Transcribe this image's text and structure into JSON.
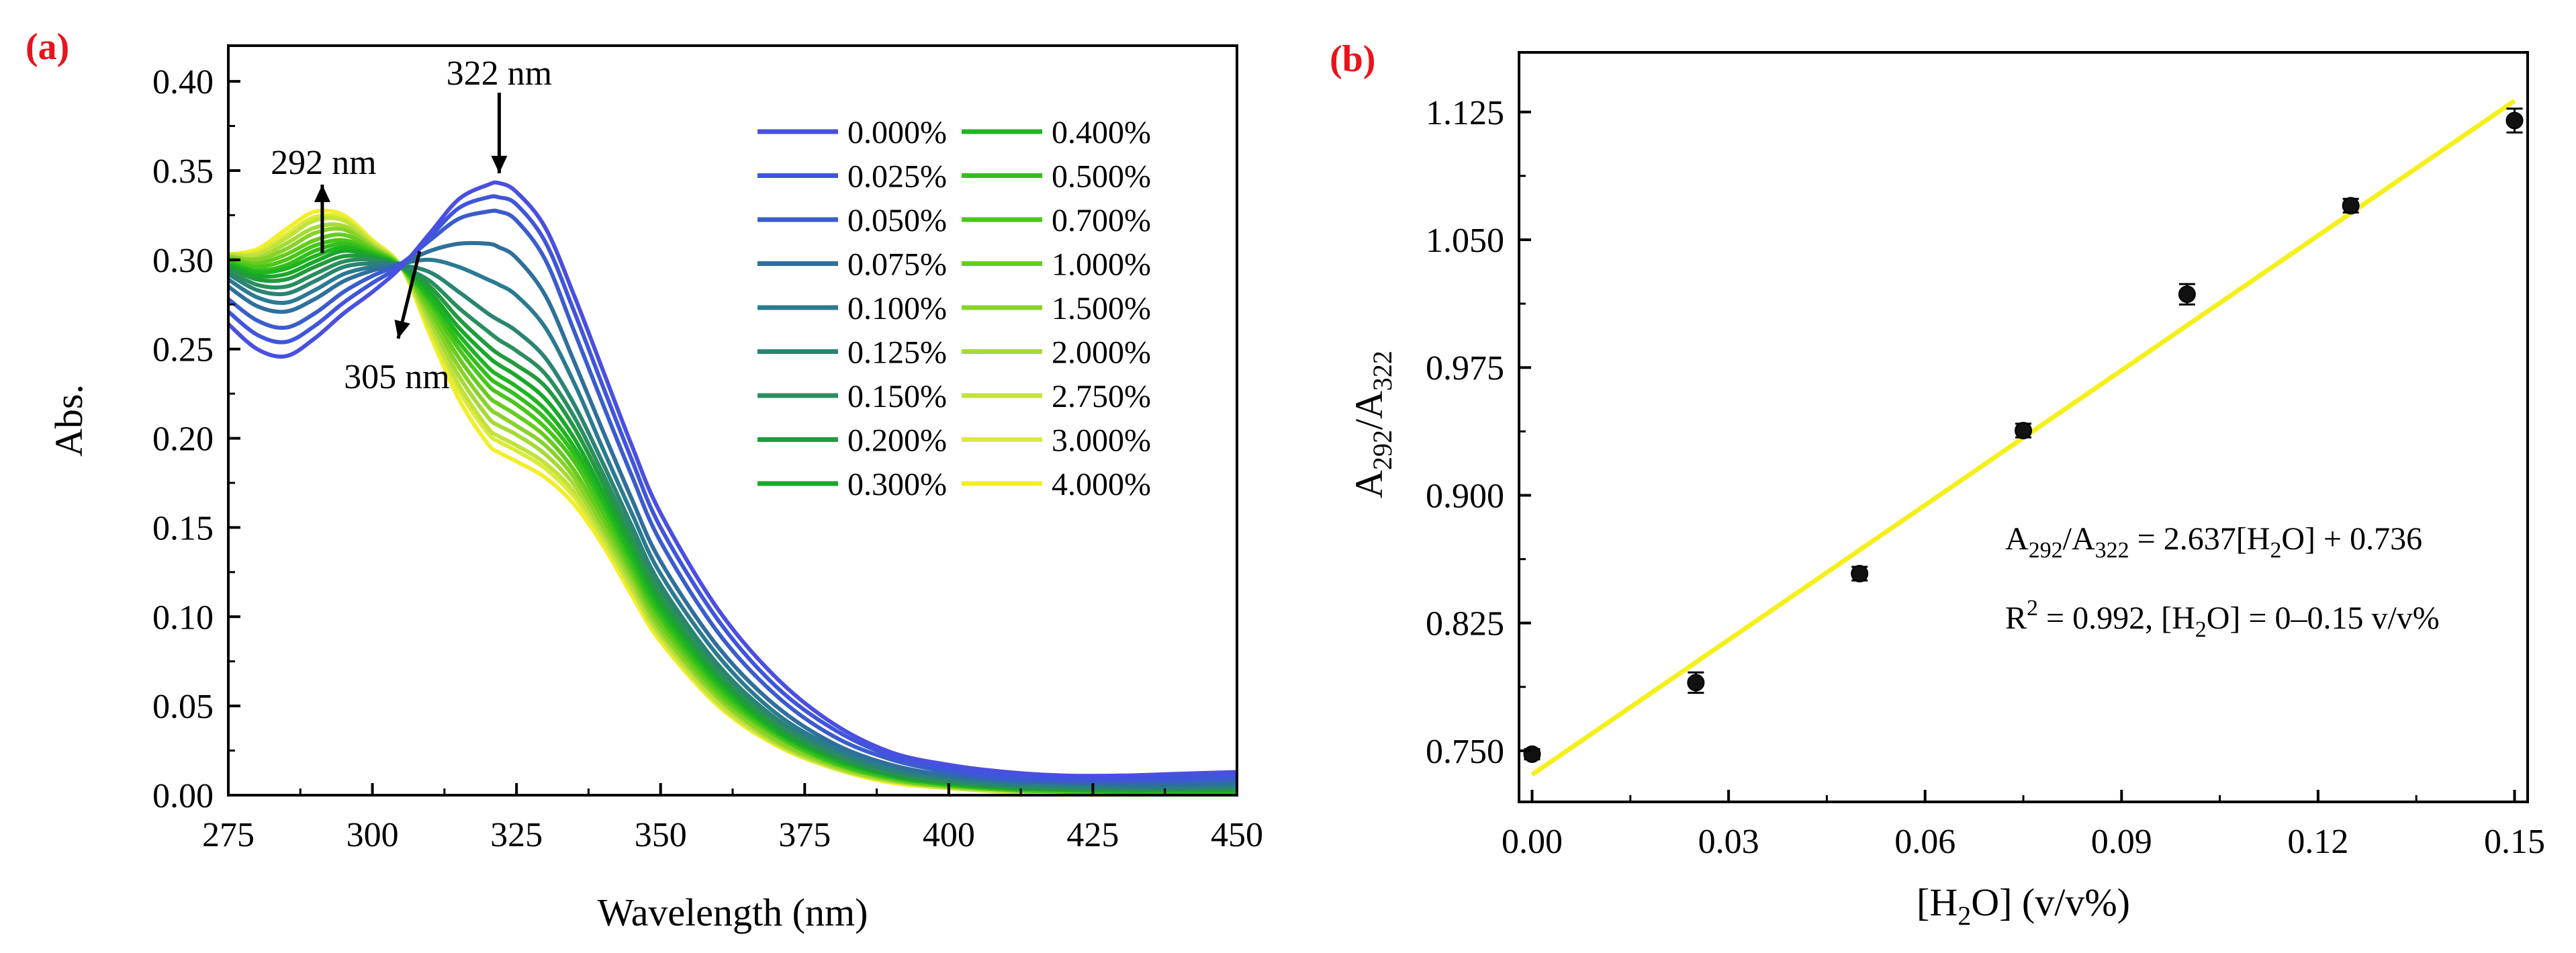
{
  "chart_data": [
    {
      "type": "line",
      "panel_label": "(a)",
      "xlabel": "Wavelength (nm)",
      "ylabel": "Abs.",
      "xlim": [
        275,
        450
      ],
      "ylim": [
        0.0,
        0.42
      ],
      "xticks": [
        "275",
        "300",
        "325",
        "350",
        "375",
        "400",
        "425",
        "450"
      ],
      "yticks": [
        "0.00",
        "0.05",
        "0.10",
        "0.15",
        "0.20",
        "0.25",
        "0.30",
        "0.35",
        "0.40"
      ],
      "x_tick_values": [
        275,
        300,
        325,
        350,
        375,
        400,
        425,
        450
      ],
      "y_tick_values": [
        0.0,
        0.05,
        0.1,
        0.15,
        0.2,
        0.25,
        0.3,
        0.35,
        0.4
      ],
      "grid": false,
      "legend_placement": "top-right",
      "annotations": [
        {
          "text": "292 nm",
          "x": 292,
          "y": 0.3,
          "direction": "up"
        },
        {
          "text": "322 nm",
          "x": 322,
          "y": 0.344,
          "direction": "down"
        },
        {
          "text": "305 nm",
          "x": 304,
          "y": 0.295,
          "direction": "down-left"
        }
      ],
      "x_points": [
        275,
        280,
        285,
        290,
        295,
        300,
        305,
        310,
        315,
        320,
        322,
        325,
        330,
        335,
        340,
        345,
        350,
        360,
        370,
        380,
        390,
        400,
        410,
        420,
        430,
        440,
        450
      ],
      "series": [
        {
          "name": "0.000%",
          "color": "#4a4fe0",
          "values": [
            0.264,
            0.25,
            0.246,
            0.256,
            0.27,
            0.282,
            0.296,
            0.315,
            0.334,
            0.342,
            0.343,
            0.338,
            0.318,
            0.28,
            0.238,
            0.196,
            0.158,
            0.104,
            0.066,
            0.04,
            0.024,
            0.017,
            0.013,
            0.011,
            0.011,
            0.012,
            0.013
          ]
        },
        {
          "name": "0.025%",
          "color": "#4055dc",
          "values": [
            0.271,
            0.258,
            0.254,
            0.263,
            0.276,
            0.287,
            0.297,
            0.313,
            0.329,
            0.335,
            0.335,
            0.331,
            0.31,
            0.271,
            0.229,
            0.188,
            0.15,
            0.098,
            0.061,
            0.037,
            0.022,
            0.015,
            0.011,
            0.009,
            0.009,
            0.01,
            0.011
          ]
        },
        {
          "name": "0.050%",
          "color": "#3a5ccc",
          "values": [
            0.278,
            0.266,
            0.262,
            0.27,
            0.282,
            0.291,
            0.298,
            0.311,
            0.323,
            0.327,
            0.327,
            0.322,
            0.3,
            0.26,
            0.219,
            0.179,
            0.142,
            0.091,
            0.056,
            0.033,
            0.02,
            0.013,
            0.009,
            0.008,
            0.008,
            0.008,
            0.009
          ]
        },
        {
          "name": "0.075%",
          "color": "#2f6f9c",
          "values": [
            0.285,
            0.274,
            0.271,
            0.278,
            0.288,
            0.294,
            0.298,
            0.305,
            0.309,
            0.309,
            0.307,
            0.301,
            0.28,
            0.243,
            0.204,
            0.166,
            0.131,
            0.083,
            0.05,
            0.029,
            0.017,
            0.011,
            0.008,
            0.007,
            0.006,
            0.006,
            0.007
          ]
        },
        {
          "name": "0.100%",
          "color": "#2a7a92",
          "values": [
            0.289,
            0.279,
            0.276,
            0.283,
            0.292,
            0.296,
            0.298,
            0.3,
            0.296,
            0.289,
            0.286,
            0.28,
            0.262,
            0.231,
            0.194,
            0.158,
            0.124,
            0.078,
            0.046,
            0.027,
            0.016,
            0.01,
            0.007,
            0.006,
            0.005,
            0.005,
            0.006
          ]
        },
        {
          "name": "0.125%",
          "color": "#2a8472",
          "values": [
            0.292,
            0.283,
            0.281,
            0.288,
            0.296,
            0.298,
            0.297,
            0.293,
            0.282,
            0.27,
            0.266,
            0.26,
            0.245,
            0.219,
            0.186,
            0.151,
            0.118,
            0.073,
            0.043,
            0.025,
            0.014,
            0.009,
            0.006,
            0.005,
            0.004,
            0.004,
            0.005
          ]
        },
        {
          "name": "0.150%",
          "color": "#2a8e5e",
          "values": [
            0.294,
            0.286,
            0.285,
            0.292,
            0.299,
            0.3,
            0.296,
            0.288,
            0.273,
            0.26,
            0.255,
            0.249,
            0.236,
            0.212,
            0.18,
            0.146,
            0.114,
            0.07,
            0.041,
            0.023,
            0.013,
            0.008,
            0.005,
            0.004,
            0.004,
            0.004,
            0.004
          ]
        },
        {
          "name": "0.200%",
          "color": "#229a3e",
          "values": [
            0.296,
            0.289,
            0.289,
            0.296,
            0.302,
            0.301,
            0.296,
            0.285,
            0.267,
            0.252,
            0.247,
            0.241,
            0.229,
            0.206,
            0.175,
            0.142,
            0.11,
            0.067,
            0.039,
            0.022,
            0.012,
            0.007,
            0.005,
            0.004,
            0.003,
            0.003,
            0.003
          ]
        },
        {
          "name": "0.300%",
          "color": "#1aa82a",
          "values": [
            0.297,
            0.291,
            0.292,
            0.299,
            0.305,
            0.302,
            0.296,
            0.282,
            0.262,
            0.246,
            0.241,
            0.235,
            0.222,
            0.2,
            0.17,
            0.138,
            0.107,
            0.065,
            0.037,
            0.021,
            0.011,
            0.007,
            0.004,
            0.003,
            0.003,
            0.003,
            0.003
          ]
        },
        {
          "name": "0.400%",
          "color": "#1fb520",
          "values": [
            0.298,
            0.293,
            0.295,
            0.302,
            0.307,
            0.303,
            0.296,
            0.279,
            0.258,
            0.24,
            0.235,
            0.229,
            0.216,
            0.195,
            0.166,
            0.134,
            0.104,
            0.063,
            0.036,
            0.02,
            0.011,
            0.006,
            0.004,
            0.003,
            0.002,
            0.002,
            0.002
          ]
        },
        {
          "name": "0.500%",
          "color": "#33be1c",
          "values": [
            0.299,
            0.294,
            0.297,
            0.305,
            0.309,
            0.304,
            0.296,
            0.277,
            0.254,
            0.235,
            0.23,
            0.224,
            0.211,
            0.191,
            0.163,
            0.131,
            0.101,
            0.061,
            0.035,
            0.019,
            0.01,
            0.006,
            0.004,
            0.003,
            0.002,
            0.002,
            0.002
          ]
        },
        {
          "name": "0.700%",
          "color": "#4ac61a",
          "values": [
            0.3,
            0.296,
            0.3,
            0.308,
            0.311,
            0.305,
            0.296,
            0.275,
            0.25,
            0.23,
            0.225,
            0.219,
            0.206,
            0.187,
            0.159,
            0.128,
            0.099,
            0.059,
            0.034,
            0.018,
            0.01,
            0.006,
            0.003,
            0.002,
            0.002,
            0.002,
            0.002
          ]
        },
        {
          "name": "1.000%",
          "color": "#66cc1e",
          "values": [
            0.301,
            0.298,
            0.303,
            0.311,
            0.314,
            0.306,
            0.296,
            0.272,
            0.245,
            0.224,
            0.219,
            0.213,
            0.201,
            0.182,
            0.155,
            0.125,
            0.096,
            0.057,
            0.033,
            0.018,
            0.009,
            0.005,
            0.003,
            0.002,
            0.002,
            0.002,
            0.002
          ]
        },
        {
          "name": "1.500%",
          "color": "#88d22a",
          "values": [
            0.302,
            0.3,
            0.306,
            0.315,
            0.317,
            0.307,
            0.296,
            0.269,
            0.24,
            0.218,
            0.213,
            0.207,
            0.196,
            0.178,
            0.151,
            0.122,
            0.093,
            0.055,
            0.031,
            0.017,
            0.009,
            0.005,
            0.003,
            0.002,
            0.002,
            0.002,
            0.002
          ]
        },
        {
          "name": "2.000%",
          "color": "#a6da36",
          "values": [
            0.302,
            0.301,
            0.309,
            0.318,
            0.319,
            0.308,
            0.296,
            0.266,
            0.235,
            0.212,
            0.207,
            0.202,
            0.191,
            0.174,
            0.148,
            0.119,
            0.091,
            0.054,
            0.03,
            0.016,
            0.008,
            0.005,
            0.003,
            0.002,
            0.001,
            0.001,
            0.001
          ]
        },
        {
          "name": "2.750%",
          "color": "#c2e23c",
          "values": [
            0.303,
            0.303,
            0.312,
            0.322,
            0.322,
            0.309,
            0.296,
            0.263,
            0.23,
            0.206,
            0.201,
            0.196,
            0.186,
            0.17,
            0.145,
            0.116,
            0.089,
            0.052,
            0.029,
            0.016,
            0.008,
            0.004,
            0.002,
            0.002,
            0.001,
            0.001,
            0.001
          ]
        },
        {
          "name": "3.000%",
          "color": "#dcea3a",
          "values": [
            0.303,
            0.304,
            0.314,
            0.324,
            0.323,
            0.31,
            0.296,
            0.261,
            0.227,
            0.203,
            0.198,
            0.193,
            0.183,
            0.167,
            0.143,
            0.115,
            0.088,
            0.051,
            0.029,
            0.015,
            0.008,
            0.004,
            0.002,
            0.001,
            0.001,
            0.001,
            0.001
          ]
        },
        {
          "name": "4.000%",
          "color": "#f2ee2a",
          "values": [
            0.303,
            0.306,
            0.317,
            0.327,
            0.325,
            0.311,
            0.296,
            0.258,
            0.222,
            0.197,
            0.192,
            0.187,
            0.178,
            0.163,
            0.14,
            0.112,
            0.086,
            0.05,
            0.028,
            0.015,
            0.007,
            0.004,
            0.002,
            0.001,
            0.001,
            0.001,
            0.001
          ]
        }
      ]
    },
    {
      "type": "scatter",
      "panel_label": "(b)",
      "xlabel_main": "[H",
      "xlabel_sub": "2",
      "xlabel_tail": "O] (v/v%)",
      "ylabel_a": "A",
      "ylabel_a_sub": "292",
      "ylabel_slash": "/A",
      "ylabel_b_sub": "322",
      "xlim": [
        -0.002,
        0.152
      ],
      "ylim": [
        0.72,
        1.16
      ],
      "xticks": [
        "0.00",
        "0.03",
        "0.06",
        "0.09",
        "0.12",
        "0.15"
      ],
      "yticks": [
        "0.750",
        "0.825",
        "0.900",
        "0.975",
        "1.050",
        "1.125"
      ],
      "x_tick_values": [
        0.0,
        0.03,
        0.06,
        0.09,
        0.12,
        0.15
      ],
      "y_tick_values": [
        0.75,
        0.825,
        0.9,
        0.975,
        1.05,
        1.125
      ],
      "grid": false,
      "points": {
        "x": [
          0.0,
          0.025,
          0.05,
          0.075,
          0.1,
          0.125,
          0.15
        ],
        "y": [
          0.748,
          0.79,
          0.854,
          0.938,
          1.018,
          1.07,
          1.12
        ],
        "error": [
          0.003,
          0.006,
          0.004,
          0.004,
          0.006,
          0.004,
          0.007
        ],
        "color": "#000000"
      },
      "fit": {
        "slope": 2.637,
        "intercept": 0.736,
        "x_range": [
          0.0,
          0.15
        ],
        "color": "#f5f01c"
      },
      "equation": {
        "p1": "A",
        "s1": "292",
        "p2": "/A",
        "s2": "322",
        "p3": " = 2.637[H",
        "s3": "2",
        "p4": "O] + 0.736"
      },
      "r2": {
        "p1": "R",
        "sup": "2",
        "p2": " = 0.992, [H",
        "s1": "2",
        "p3": "O] = 0–0.15 v/v%"
      }
    }
  ]
}
